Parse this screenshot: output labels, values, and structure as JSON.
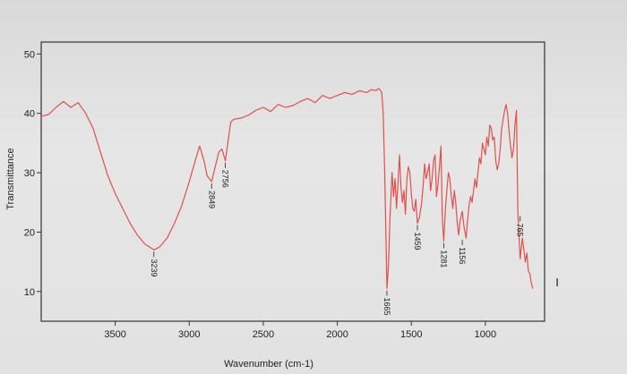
{
  "chart_data": {
    "type": "line",
    "title": "",
    "xlabel": "Wavenumber (cm-1)",
    "ylabel": "Transmittance",
    "x_reversed": true,
    "xlim": [
      4000,
      600
    ],
    "ylim": [
      5,
      52
    ],
    "x_ticks": [
      "3500",
      "3000",
      "2500",
      "2000",
      "1500",
      "1000"
    ],
    "y_ticks": [
      "50",
      "40",
      "30",
      "20",
      "10"
    ],
    "grid": false,
    "legend": "none",
    "line_color": "#e0504c",
    "series": [
      {
        "x": [
          4000,
          3950,
          3900,
          3850,
          3800,
          3750,
          3700,
          3650,
          3600,
          3550,
          3500,
          3450,
          3400,
          3350,
          3300,
          3250,
          3239,
          3200,
          3150,
          3100,
          3050,
          3000,
          2960,
          2930,
          2900,
          2880,
          2849,
          2830,
          2800,
          2780,
          2756,
          2740,
          2720,
          2700,
          2650,
          2600,
          2550,
          2500,
          2450,
          2400,
          2350,
          2300,
          2250,
          2200,
          2150,
          2100,
          2050,
          2000,
          1950,
          1900,
          1850,
          1800,
          1770,
          1740,
          1720,
          1700,
          1690,
          1680,
          1665,
          1655,
          1645,
          1630,
          1620,
          1610,
          1600,
          1590,
          1580,
          1570,
          1560,
          1550,
          1540,
          1530,
          1520,
          1510,
          1500,
          1490,
          1480,
          1470,
          1459,
          1445,
          1430,
          1420,
          1410,
          1400,
          1390,
          1380,
          1370,
          1360,
          1350,
          1340,
          1330,
          1320,
          1310,
          1300,
          1290,
          1281,
          1270,
          1260,
          1250,
          1240,
          1230,
          1220,
          1210,
          1200,
          1190,
          1180,
          1170,
          1156,
          1145,
          1130,
          1120,
          1110,
          1100,
          1090,
          1080,
          1070,
          1060,
          1050,
          1040,
          1030,
          1020,
          1010,
          1000,
          990,
          980,
          970,
          960,
          950,
          940,
          930,
          920,
          910,
          900,
          890,
          880,
          870,
          860,
          850,
          840,
          830,
          820,
          810,
          800,
          790,
          780,
          765,
          750,
          740,
          730,
          720,
          710,
          700,
          690,
          680
        ],
        "y": [
          39.5,
          39.8,
          41.0,
          42.0,
          41.0,
          41.8,
          40.0,
          37.5,
          33.5,
          29.5,
          26.5,
          24.0,
          21.5,
          19.5,
          18.0,
          17.2,
          17.0,
          17.5,
          19.0,
          21.5,
          24.5,
          28.5,
          32.0,
          34.5,
          32.0,
          29.5,
          28.5,
          30.5,
          33.5,
          34.0,
          32.0,
          35.0,
          38.5,
          39.0,
          39.2,
          39.7,
          40.5,
          41.0,
          40.3,
          41.5,
          41.0,
          41.3,
          42.0,
          42.5,
          41.8,
          43.0,
          42.5,
          43.0,
          43.5,
          43.2,
          43.8,
          43.5,
          44.0,
          43.8,
          44.2,
          43.5,
          40.0,
          30.0,
          10.5,
          14.0,
          22.0,
          30.0,
          26.0,
          29.0,
          24.0,
          28.5,
          33.0,
          27.5,
          25.0,
          27.0,
          23.0,
          29.0,
          31.0,
          30.0,
          26.5,
          24.0,
          23.5,
          25.5,
          21.5,
          22.5,
          25.0,
          28.0,
          31.5,
          29.0,
          30.0,
          31.5,
          27.0,
          29.0,
          32.0,
          33.0,
          26.0,
          28.0,
          31.0,
          34.5,
          22.0,
          18.5,
          24.0,
          27.0,
          30.0,
          29.0,
          26.0,
          24.0,
          27.0,
          25.0,
          21.5,
          19.5,
          22.0,
          23.5,
          21.0,
          19.0,
          22.0,
          24.5,
          26.0,
          25.0,
          27.0,
          29.0,
          27.5,
          30.0,
          32.5,
          31.5,
          35.0,
          34.0,
          33.0,
          36.0,
          34.5,
          38.0,
          37.5,
          35.5,
          36.0,
          32.0,
          30.5,
          31.5,
          34.0,
          37.5,
          39.0,
          40.5,
          41.5,
          40.0,
          37.0,
          34.5,
          32.5,
          34.0,
          38.0,
          40.5,
          23.0,
          15.5,
          19.0,
          17.0,
          15.0,
          16.5,
          13.5,
          13.0,
          11.5,
          10.5
        ]
      }
    ],
    "annotations": [
      {
        "text": "3239",
        "x": 3239,
        "y": 17.0
      },
      {
        "text": "2849",
        "x": 2849,
        "y": 28.5
      },
      {
        "text": "2756",
        "x": 2756,
        "y": 32.0
      },
      {
        "text": "1665",
        "x": 1665,
        "y": 10.5
      },
      {
        "text": "1459",
        "x": 1459,
        "y": 21.5
      },
      {
        "text": "1281",
        "x": 1281,
        "y": 18.5
      },
      {
        "text": "1156",
        "x": 1156,
        "y": 19.0
      },
      {
        "text": "765",
        "x": 765,
        "y": 23.0
      }
    ],
    "side_mark": "I"
  }
}
